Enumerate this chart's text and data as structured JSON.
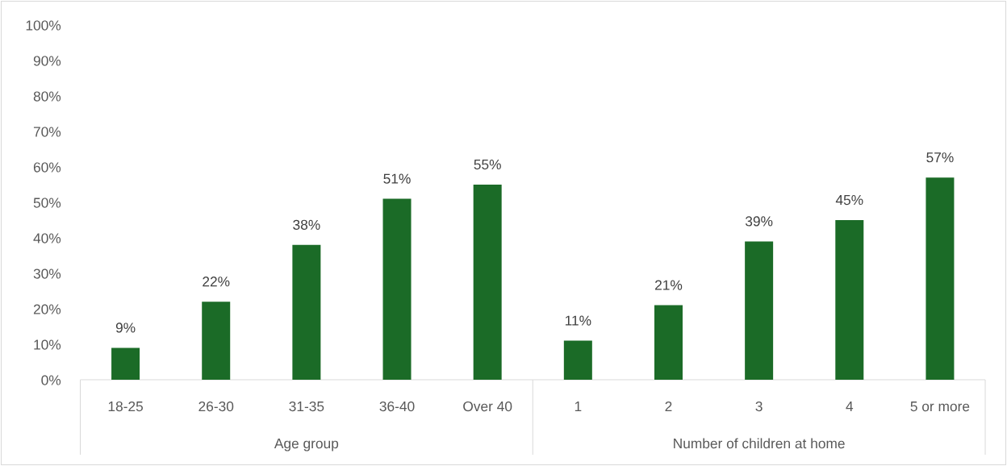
{
  "chart_data": [
    {
      "type": "bar",
      "xlabel": "Age group",
      "categories": [
        "18-25",
        "26-30",
        "31-35",
        "36-40",
        "Over 40"
      ],
      "values": [
        9,
        22,
        38,
        51,
        55
      ],
      "value_labels": [
        "9%",
        "22%",
        "38%",
        "51%",
        "55%"
      ],
      "color": "#1b6b27",
      "ylim": [
        0,
        100
      ],
      "yticks": [
        {
          "value": 0,
          "label": "0%"
        },
        {
          "value": 10,
          "label": "10%"
        },
        {
          "value": 20,
          "label": "20%"
        },
        {
          "value": 30,
          "label": "30%"
        },
        {
          "value": 40,
          "label": "40%"
        },
        {
          "value": 50,
          "label": "50%"
        },
        {
          "value": 60,
          "label": "60%"
        },
        {
          "value": 70,
          "label": "70%"
        },
        {
          "value": 80,
          "label": "80%"
        },
        {
          "value": 90,
          "label": "90%"
        },
        {
          "value": 100,
          "label": "100%"
        }
      ]
    },
    {
      "type": "bar",
      "xlabel": "Number of children at home",
      "categories": [
        "1",
        "2",
        "3",
        "4",
        "5 or more"
      ],
      "values": [
        11,
        21,
        39,
        45,
        57
      ],
      "value_labels": [
        "11%",
        "21%",
        "39%",
        "45%",
        "57%"
      ],
      "color": "#1b6b27",
      "ylim": [
        0,
        100
      ],
      "tick_labels": "x"
    }
  ]
}
